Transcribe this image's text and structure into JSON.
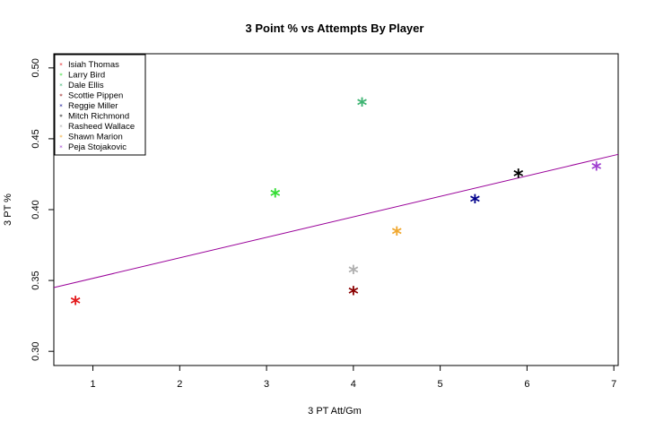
{
  "chart_data": {
    "type": "scatter",
    "title": "3 Point % vs Attempts By Player",
    "xlabel": "3 PT Att/Gm",
    "ylabel": "3 PT %",
    "xlim": [
      0.55,
      7.05
    ],
    "ylim": [
      0.29,
      0.51
    ],
    "xticks": [
      "1",
      "2",
      "3",
      "4",
      "5",
      "6",
      "7"
    ],
    "yticks": [
      "0.30",
      "0.35",
      "0.40",
      "0.45",
      "0.50"
    ],
    "legend_position": "top-left",
    "marker": "*",
    "series": [
      {
        "name": "Isiah Thomas",
        "x": 0.8,
        "y": 0.337,
        "color": "#e31a1c"
      },
      {
        "name": "Larry Bird",
        "x": 3.1,
        "y": 0.413,
        "color": "#33dd33"
      },
      {
        "name": "Dale Ellis",
        "x": 4.1,
        "y": 0.477,
        "color": "#3cb371"
      },
      {
        "name": "Scottie Pippen",
        "x": 4.0,
        "y": 0.344,
        "color": "#8b0000"
      },
      {
        "name": "Reggie Miller",
        "x": 5.4,
        "y": 0.409,
        "color": "#00008b"
      },
      {
        "name": "Mitch Richmond",
        "x": 5.9,
        "y": 0.427,
        "color": "#000000"
      },
      {
        "name": "Rasheed Wallace",
        "x": 4.0,
        "y": 0.359,
        "color": "#b0b0b0"
      },
      {
        "name": "Shawn Marion",
        "x": 4.5,
        "y": 0.386,
        "color": "#f0a830"
      },
      {
        "name": "Peja Stojakovic",
        "x": 6.8,
        "y": 0.432,
        "color": "#a040d0"
      }
    ],
    "trend_line": {
      "x": [
        0.55,
        7.05
      ],
      "y": [
        0.345,
        0.439
      ],
      "color": "#990099"
    }
  }
}
